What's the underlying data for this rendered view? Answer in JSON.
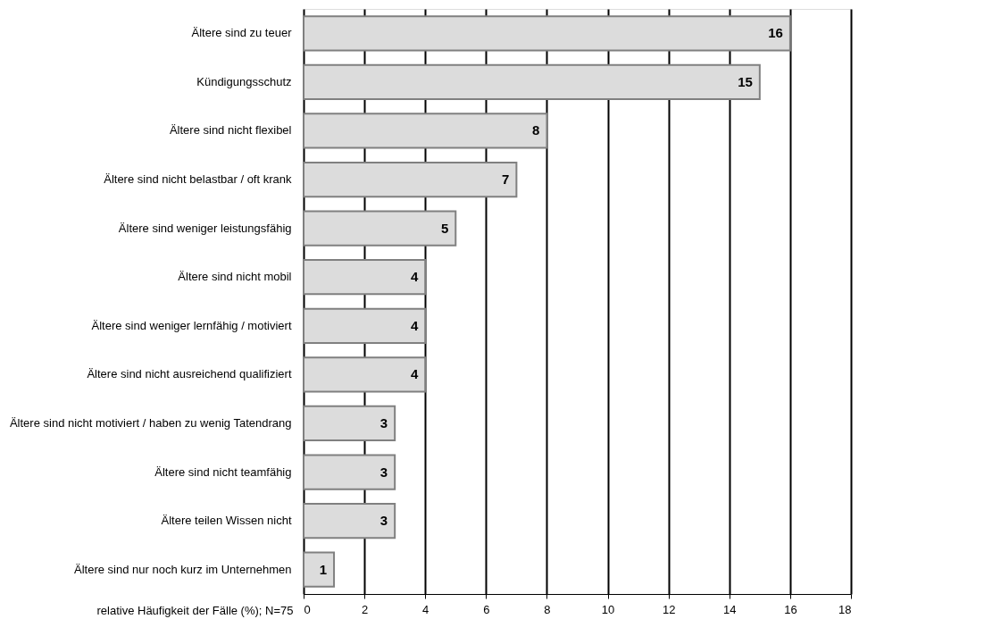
{
  "chart_data": {
    "type": "bar",
    "orientation": "horizontal",
    "categories": [
      "Ältere sind zu teuer",
      "Kündigungsschutz",
      "Ältere sind nicht flexibel",
      "Ältere sind nicht belastbar / oft krank",
      "Ältere sind weniger leistungsfähig",
      "Ältere sind nicht mobil",
      "Ältere sind weniger lernfähig / motiviert",
      "Ältere sind nicht ausreichend qualifiziert",
      "Ältere sind nicht motiviert / haben zu wenig Tatendrang",
      "Ältere sind nicht teamfähig",
      "Ältere teilen Wissen nicht",
      "Ältere sind nur noch kurz im Unternehmen"
    ],
    "values": [
      16,
      15,
      8,
      7,
      5,
      4,
      4,
      4,
      3,
      3,
      3,
      1
    ],
    "color": "#dcdcdc",
    "xlabel": "relative Häufigkeit der Fälle (%); N=75",
    "xlim": [
      0,
      18
    ],
    "xticks": [
      0,
      2,
      4,
      6,
      8,
      10,
      12,
      14,
      16,
      18
    ],
    "grid": "x",
    "data_labels": true
  }
}
